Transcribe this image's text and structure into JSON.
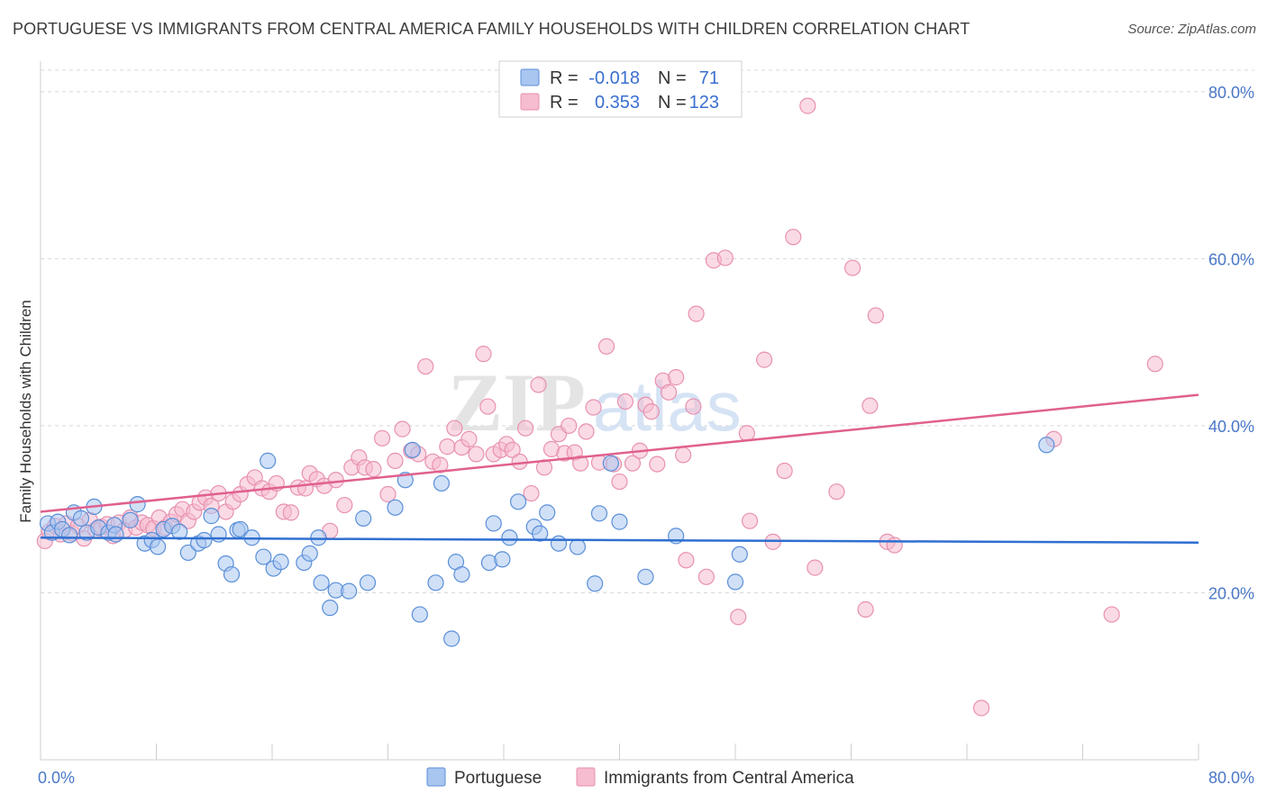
{
  "header": {
    "title": "PORTUGUESE VS IMMIGRANTS FROM CENTRAL AMERICA FAMILY HOUSEHOLDS WITH CHILDREN CORRELATION CHART",
    "source": "Source: ZipAtlas.com"
  },
  "watermark": {
    "part1": "ZIP",
    "part2": "atlas"
  },
  "legend_box": {
    "rows": [
      {
        "r_label": "R =",
        "r_value": "-0.018",
        "n_label": "N =",
        "n_value": "71"
      },
      {
        "r_label": "R =",
        "r_value": "0.353",
        "n_label": "N =",
        "n_value": "123"
      }
    ]
  },
  "colors": {
    "blue_fill": "#a9c6f0",
    "blue_stroke": "#5a8fd8",
    "blue_line": "#2f6fd1",
    "pink_fill": "#f6bcd0",
    "pink_stroke": "#e891b0",
    "pink_line": "#e0608e",
    "grid": "#d8d8d8",
    "tick_text": "#4a78c8"
  },
  "chart_data": {
    "type": "scatter",
    "title": "PORTUGUESE VS IMMIGRANTS FROM CENTRAL AMERICA FAMILY HOUSEHOLDS WITH CHILDREN CORRELATION CHART",
    "xlabel": "",
    "ylabel": "Family Households with Children",
    "xlim": [
      0,
      80
    ],
    "ylim": [
      0,
      83
    ],
    "x_tick_labels": [
      "0.0%",
      "80.0%"
    ],
    "y_tick_labels": [
      "20.0%",
      "40.0%",
      "60.0%",
      "80.0%"
    ],
    "y_ticks": [
      20,
      40,
      60,
      80
    ],
    "grid": true,
    "legend_position": "bottom",
    "series": [
      {
        "name": "Portuguese",
        "color": "blue",
        "r": -0.018,
        "n": 71,
        "trend": [
          [
            0,
            26.6
          ],
          [
            80,
            26.0
          ]
        ],
        "points": [
          [
            0.5,
            28.3
          ],
          [
            0.8,
            27.2
          ],
          [
            1.2,
            28.5
          ],
          [
            1.5,
            27.6
          ],
          [
            2.0,
            26.9
          ],
          [
            2.3,
            29.6
          ],
          [
            2.8,
            28.9
          ],
          [
            3.2,
            27.2
          ],
          [
            3.7,
            30.3
          ],
          [
            4.0,
            27.8
          ],
          [
            4.7,
            27.2
          ],
          [
            5.1,
            28.1
          ],
          [
            5.2,
            27.0
          ],
          [
            6.2,
            28.7
          ],
          [
            6.7,
            30.6
          ],
          [
            7.2,
            25.9
          ],
          [
            7.7,
            26.3
          ],
          [
            8.1,
            25.5
          ],
          [
            8.5,
            27.6
          ],
          [
            9.1,
            28.0
          ],
          [
            9.6,
            27.3
          ],
          [
            10.2,
            24.8
          ],
          [
            10.9,
            25.9
          ],
          [
            11.3,
            26.3
          ],
          [
            11.8,
            29.2
          ],
          [
            12.3,
            27.0
          ],
          [
            12.8,
            23.5
          ],
          [
            13.2,
            22.2
          ],
          [
            13.6,
            27.5
          ],
          [
            13.8,
            27.6
          ],
          [
            14.6,
            26.6
          ],
          [
            15.4,
            24.3
          ],
          [
            15.7,
            35.8
          ],
          [
            16.1,
            22.9
          ],
          [
            16.6,
            23.7
          ],
          [
            18.2,
            23.6
          ],
          [
            18.6,
            24.7
          ],
          [
            19.2,
            26.6
          ],
          [
            19.4,
            21.2
          ],
          [
            20.0,
            18.2
          ],
          [
            20.4,
            20.3
          ],
          [
            21.3,
            20.2
          ],
          [
            22.3,
            28.9
          ],
          [
            22.6,
            21.2
          ],
          [
            24.5,
            30.2
          ],
          [
            25.2,
            33.5
          ],
          [
            25.7,
            37.1
          ],
          [
            26.2,
            17.4
          ],
          [
            27.3,
            21.2
          ],
          [
            27.7,
            33.1
          ],
          [
            28.4,
            14.5
          ],
          [
            28.7,
            23.7
          ],
          [
            29.1,
            22.2
          ],
          [
            31.0,
            23.6
          ],
          [
            31.3,
            28.3
          ],
          [
            31.9,
            24.0
          ],
          [
            32.4,
            26.6
          ],
          [
            33.0,
            30.9
          ],
          [
            34.1,
            27.9
          ],
          [
            34.5,
            27.1
          ],
          [
            35.0,
            29.6
          ],
          [
            35.8,
            25.9
          ],
          [
            37.1,
            25.5
          ],
          [
            38.3,
            21.1
          ],
          [
            38.6,
            29.5
          ],
          [
            39.4,
            35.5
          ],
          [
            40.0,
            28.5
          ],
          [
            41.8,
            21.9
          ],
          [
            43.9,
            26.8
          ],
          [
            48.0,
            21.3
          ],
          [
            48.3,
            24.6
          ],
          [
            69.5,
            37.7
          ]
        ]
      },
      {
        "name": "Immigrants from Central America",
        "color": "pink",
        "r": 0.353,
        "n": 123,
        "trend": [
          [
            0,
            29.7
          ],
          [
            80,
            43.7
          ]
        ],
        "points": [
          [
            0.3,
            26.2
          ],
          [
            0.6,
            27.3
          ],
          [
            1.0,
            28.0
          ],
          [
            1.4,
            27.0
          ],
          [
            1.8,
            28.3
          ],
          [
            2.2,
            27.1
          ],
          [
            2.6,
            28.0
          ],
          [
            3.0,
            26.5
          ],
          [
            3.4,
            28.7
          ],
          [
            3.8,
            27.5
          ],
          [
            4.2,
            27.9
          ],
          [
            4.6,
            28.2
          ],
          [
            5.0,
            26.8
          ],
          [
            5.4,
            28.4
          ],
          [
            5.8,
            27.5
          ],
          [
            6.2,
            29.0
          ],
          [
            6.6,
            27.8
          ],
          [
            7.0,
            28.4
          ],
          [
            7.4,
            28.1
          ],
          [
            7.8,
            27.7
          ],
          [
            8.2,
            29.0
          ],
          [
            8.6,
            27.8
          ],
          [
            9.0,
            28.5
          ],
          [
            9.4,
            29.4
          ],
          [
            9.8,
            30.0
          ],
          [
            10.2,
            28.6
          ],
          [
            10.6,
            29.7
          ],
          [
            11.0,
            30.8
          ],
          [
            11.4,
            31.4
          ],
          [
            11.8,
            30.4
          ],
          [
            12.3,
            31.9
          ],
          [
            12.8,
            29.7
          ],
          [
            13.3,
            30.9
          ],
          [
            13.8,
            31.8
          ],
          [
            14.3,
            33.0
          ],
          [
            14.8,
            33.8
          ],
          [
            15.3,
            32.5
          ],
          [
            15.8,
            32.1
          ],
          [
            16.3,
            33.1
          ],
          [
            16.8,
            29.7
          ],
          [
            17.3,
            29.6
          ],
          [
            17.8,
            32.6
          ],
          [
            18.3,
            32.5
          ],
          [
            18.6,
            34.3
          ],
          [
            19.1,
            33.6
          ],
          [
            19.6,
            32.8
          ],
          [
            20.0,
            27.4
          ],
          [
            20.4,
            33.5
          ],
          [
            21.0,
            30.5
          ],
          [
            21.5,
            35.0
          ],
          [
            22.0,
            36.2
          ],
          [
            22.4,
            35.0
          ],
          [
            23.0,
            34.8
          ],
          [
            23.6,
            38.5
          ],
          [
            24.0,
            31.8
          ],
          [
            24.5,
            35.8
          ],
          [
            25.0,
            39.6
          ],
          [
            25.6,
            37.0
          ],
          [
            26.1,
            36.6
          ],
          [
            26.6,
            47.1
          ],
          [
            27.1,
            35.7
          ],
          [
            27.6,
            35.3
          ],
          [
            28.1,
            37.5
          ],
          [
            28.6,
            39.7
          ],
          [
            29.1,
            37.4
          ],
          [
            29.6,
            38.4
          ],
          [
            30.1,
            36.6
          ],
          [
            30.6,
            48.6
          ],
          [
            30.9,
            42.3
          ],
          [
            31.3,
            36.6
          ],
          [
            31.8,
            37.1
          ],
          [
            32.2,
            37.8
          ],
          [
            32.6,
            37.1
          ],
          [
            33.1,
            35.7
          ],
          [
            33.5,
            39.7
          ],
          [
            33.9,
            31.9
          ],
          [
            34.4,
            44.9
          ],
          [
            34.8,
            35.0
          ],
          [
            35.3,
            37.2
          ],
          [
            35.8,
            39.0
          ],
          [
            36.2,
            36.7
          ],
          [
            36.5,
            40.0
          ],
          [
            36.9,
            36.8
          ],
          [
            37.3,
            35.5
          ],
          [
            37.7,
            39.3
          ],
          [
            38.2,
            42.2
          ],
          [
            38.6,
            35.6
          ],
          [
            39.1,
            49.5
          ],
          [
            39.6,
            35.4
          ],
          [
            40.0,
            33.3
          ],
          [
            40.4,
            42.9
          ],
          [
            40.9,
            35.5
          ],
          [
            41.4,
            37.0
          ],
          [
            41.8,
            42.5
          ],
          [
            42.2,
            41.7
          ],
          [
            42.6,
            35.4
          ],
          [
            43.0,
            45.4
          ],
          [
            43.4,
            44.0
          ],
          [
            43.9,
            45.8
          ],
          [
            44.4,
            36.5
          ],
          [
            44.6,
            23.9
          ],
          [
            45.1,
            42.3
          ],
          [
            45.3,
            53.4
          ],
          [
            46.0,
            21.9
          ],
          [
            46.5,
            59.8
          ],
          [
            47.3,
            60.1
          ],
          [
            48.2,
            17.1
          ],
          [
            48.8,
            39.1
          ],
          [
            49.0,
            28.6
          ],
          [
            50.0,
            47.9
          ],
          [
            50.6,
            26.1
          ],
          [
            51.4,
            34.6
          ],
          [
            52.0,
            62.6
          ],
          [
            53.0,
            78.3
          ],
          [
            53.5,
            23.0
          ],
          [
            55.0,
            32.1
          ],
          [
            56.1,
            58.9
          ],
          [
            57.0,
            18.0
          ],
          [
            57.3,
            42.4
          ],
          [
            57.7,
            53.2
          ],
          [
            58.5,
            26.1
          ],
          [
            59.0,
            25.7
          ],
          [
            65.0,
            6.2
          ],
          [
            70.0,
            38.4
          ],
          [
            74.0,
            17.4
          ],
          [
            77.0,
            47.4
          ]
        ]
      }
    ]
  },
  "bottom_legend": {
    "items": [
      {
        "label": "Portuguese"
      },
      {
        "label": "Immigrants from Central America"
      }
    ]
  }
}
